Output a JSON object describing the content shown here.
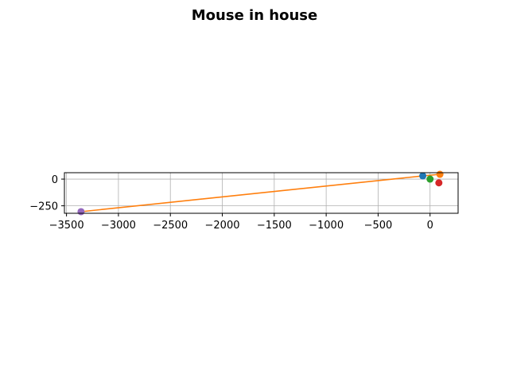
{
  "chart_data": {
    "type": "scatter",
    "title": "Mouse in house",
    "xlabel": "",
    "ylabel": "",
    "xlim": [
      -3520,
      270
    ],
    "ylim": [
      -320,
      60
    ],
    "grid": true,
    "xticks": [
      -3500,
      -3000,
      -2500,
      -2000,
      -1500,
      -1000,
      -500,
      0
    ],
    "xtick_labels": [
      "−3500",
      "−3000",
      "−2500",
      "−2000",
      "−1500",
      "−1000",
      "−500",
      "0"
    ],
    "yticks": [
      0,
      -250
    ],
    "ytick_labels": [
      "0",
      "−250"
    ],
    "points": [
      {
        "x": -70,
        "y": 30,
        "color": "#1f77b4"
      },
      {
        "x": 95,
        "y": 45,
        "color": "#ff7f0e"
      },
      {
        "x": 0,
        "y": 0,
        "color": "#2ca02c"
      },
      {
        "x": 85,
        "y": -35,
        "color": "#d62728"
      },
      {
        "x": -3360,
        "y": -305,
        "color": "#9467bd"
      }
    ],
    "line": {
      "color": "#ff7f0e",
      "points": [
        {
          "x": -3360,
          "y": -305
        },
        {
          "x": -70,
          "y": 30
        },
        {
          "x": 95,
          "y": 45
        }
      ]
    }
  }
}
